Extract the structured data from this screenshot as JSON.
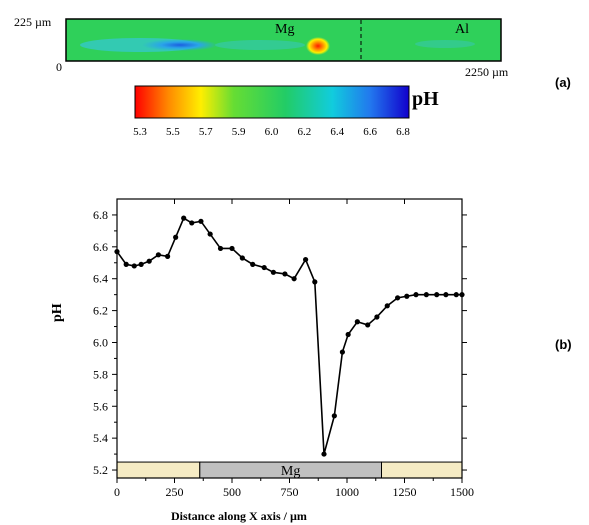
{
  "panel_a": {
    "label": "(a)",
    "y_top_label": "225 µm",
    "y_origin_label": "0",
    "x_end_label": "2250 µm",
    "region_left_label": "Mg",
    "region_right_label": "Al",
    "colorbar": {
      "title": "pH",
      "ticks": [
        "5.3",
        "5.5",
        "5.7",
        "5.9",
        "6.0",
        "6.2",
        "6.4",
        "6.6",
        "6.8"
      ]
    },
    "colors": {
      "low": "#ff0000",
      "mid": "#22cc55",
      "high": "#0000dd"
    }
  },
  "panel_b": {
    "label": "(b)"
  },
  "chart_data": {
    "type": "line",
    "title": "",
    "xlabel": "Distance along X axis / µm",
    "ylabel": "pH",
    "xlim": [
      0,
      1500
    ],
    "ylim": [
      5.15,
      6.9
    ],
    "xticks": [
      "0",
      "250",
      "500",
      "750",
      "1000",
      "1250",
      "1500"
    ],
    "yticks": [
      "5.2",
      "5.4",
      "5.6",
      "5.8",
      "6.0",
      "6.2",
      "6.4",
      "6.6",
      "6.8"
    ],
    "grid": false,
    "line_color": "#000000",
    "series": [
      {
        "x": [
          0,
          40,
          75,
          105,
          140,
          180,
          220,
          255,
          290,
          325,
          365,
          405,
          450,
          500,
          545,
          590,
          640,
          680,
          730,
          770,
          820,
          860,
          900,
          945,
          980,
          1005,
          1045,
          1090,
          1130,
          1175,
          1220,
          1260,
          1300,
          1345,
          1390,
          1430,
          1475,
          1500
        ],
        "y": [
          6.57,
          6.49,
          6.48,
          6.49,
          6.51,
          6.55,
          6.54,
          6.66,
          6.78,
          6.75,
          6.76,
          6.68,
          6.59,
          6.59,
          6.53,
          6.49,
          6.47,
          6.44,
          6.43,
          6.4,
          6.52,
          6.38,
          5.3,
          5.54,
          5.94,
          6.05,
          6.13,
          6.11,
          6.16,
          6.23,
          6.28,
          6.29,
          6.3,
          6.3,
          6.3,
          6.3,
          6.3,
          6.3
        ]
      }
    ],
    "region_bar": [
      {
        "label": "",
        "from": 0,
        "to": 360,
        "color": "#f5ebc4"
      },
      {
        "label": "Mg",
        "from": 360,
        "to": 1150,
        "color": "#c0c0c0"
      },
      {
        "label": "",
        "from": 1150,
        "to": 1500,
        "color": "#f5ebc4"
      }
    ]
  }
}
